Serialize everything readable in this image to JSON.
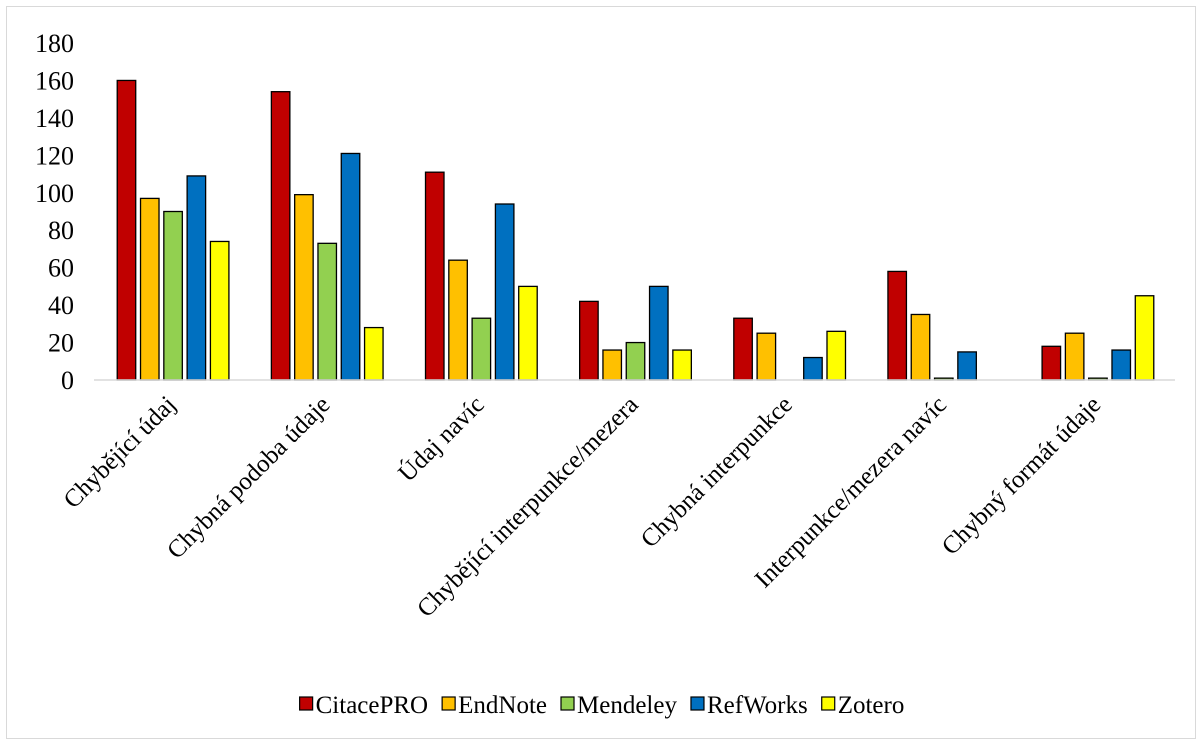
{
  "chart_data": {
    "type": "bar",
    "title": "",
    "xlabel": "",
    "ylabel": "",
    "ylim": [
      0,
      180
    ],
    "yticks": [
      0,
      20,
      40,
      60,
      80,
      100,
      120,
      140,
      160,
      180
    ],
    "grid": false,
    "legend_position": "bottom",
    "categories": [
      "Chybějící údaj",
      "Chybná podoba údaje",
      "Údaj navíc",
      "Chybějící interpunkce/mezera",
      "Chybná interpunkce",
      "Interpunkce/mezera navíc",
      "Chybný formát údaje"
    ],
    "series": [
      {
        "name": "CitacePRO",
        "color": "#C00000",
        "values": [
          160,
          154,
          111,
          42,
          33,
          58,
          18
        ]
      },
      {
        "name": "EndNote",
        "color": "#FFC000",
        "values": [
          97,
          99,
          64,
          16,
          25,
          35,
          25
        ]
      },
      {
        "name": "Mendeley",
        "color": "#92D050",
        "values": [
          90,
          73,
          33,
          20,
          0,
          1,
          1
        ]
      },
      {
        "name": "RefWorks",
        "color": "#0070C0",
        "values": [
          109,
          121,
          94,
          50,
          12,
          15,
          16
        ]
      },
      {
        "name": "Zotero",
        "color": "#FFFF00",
        "values": [
          74,
          28,
          50,
          16,
          26,
          0,
          45
        ]
      }
    ]
  }
}
